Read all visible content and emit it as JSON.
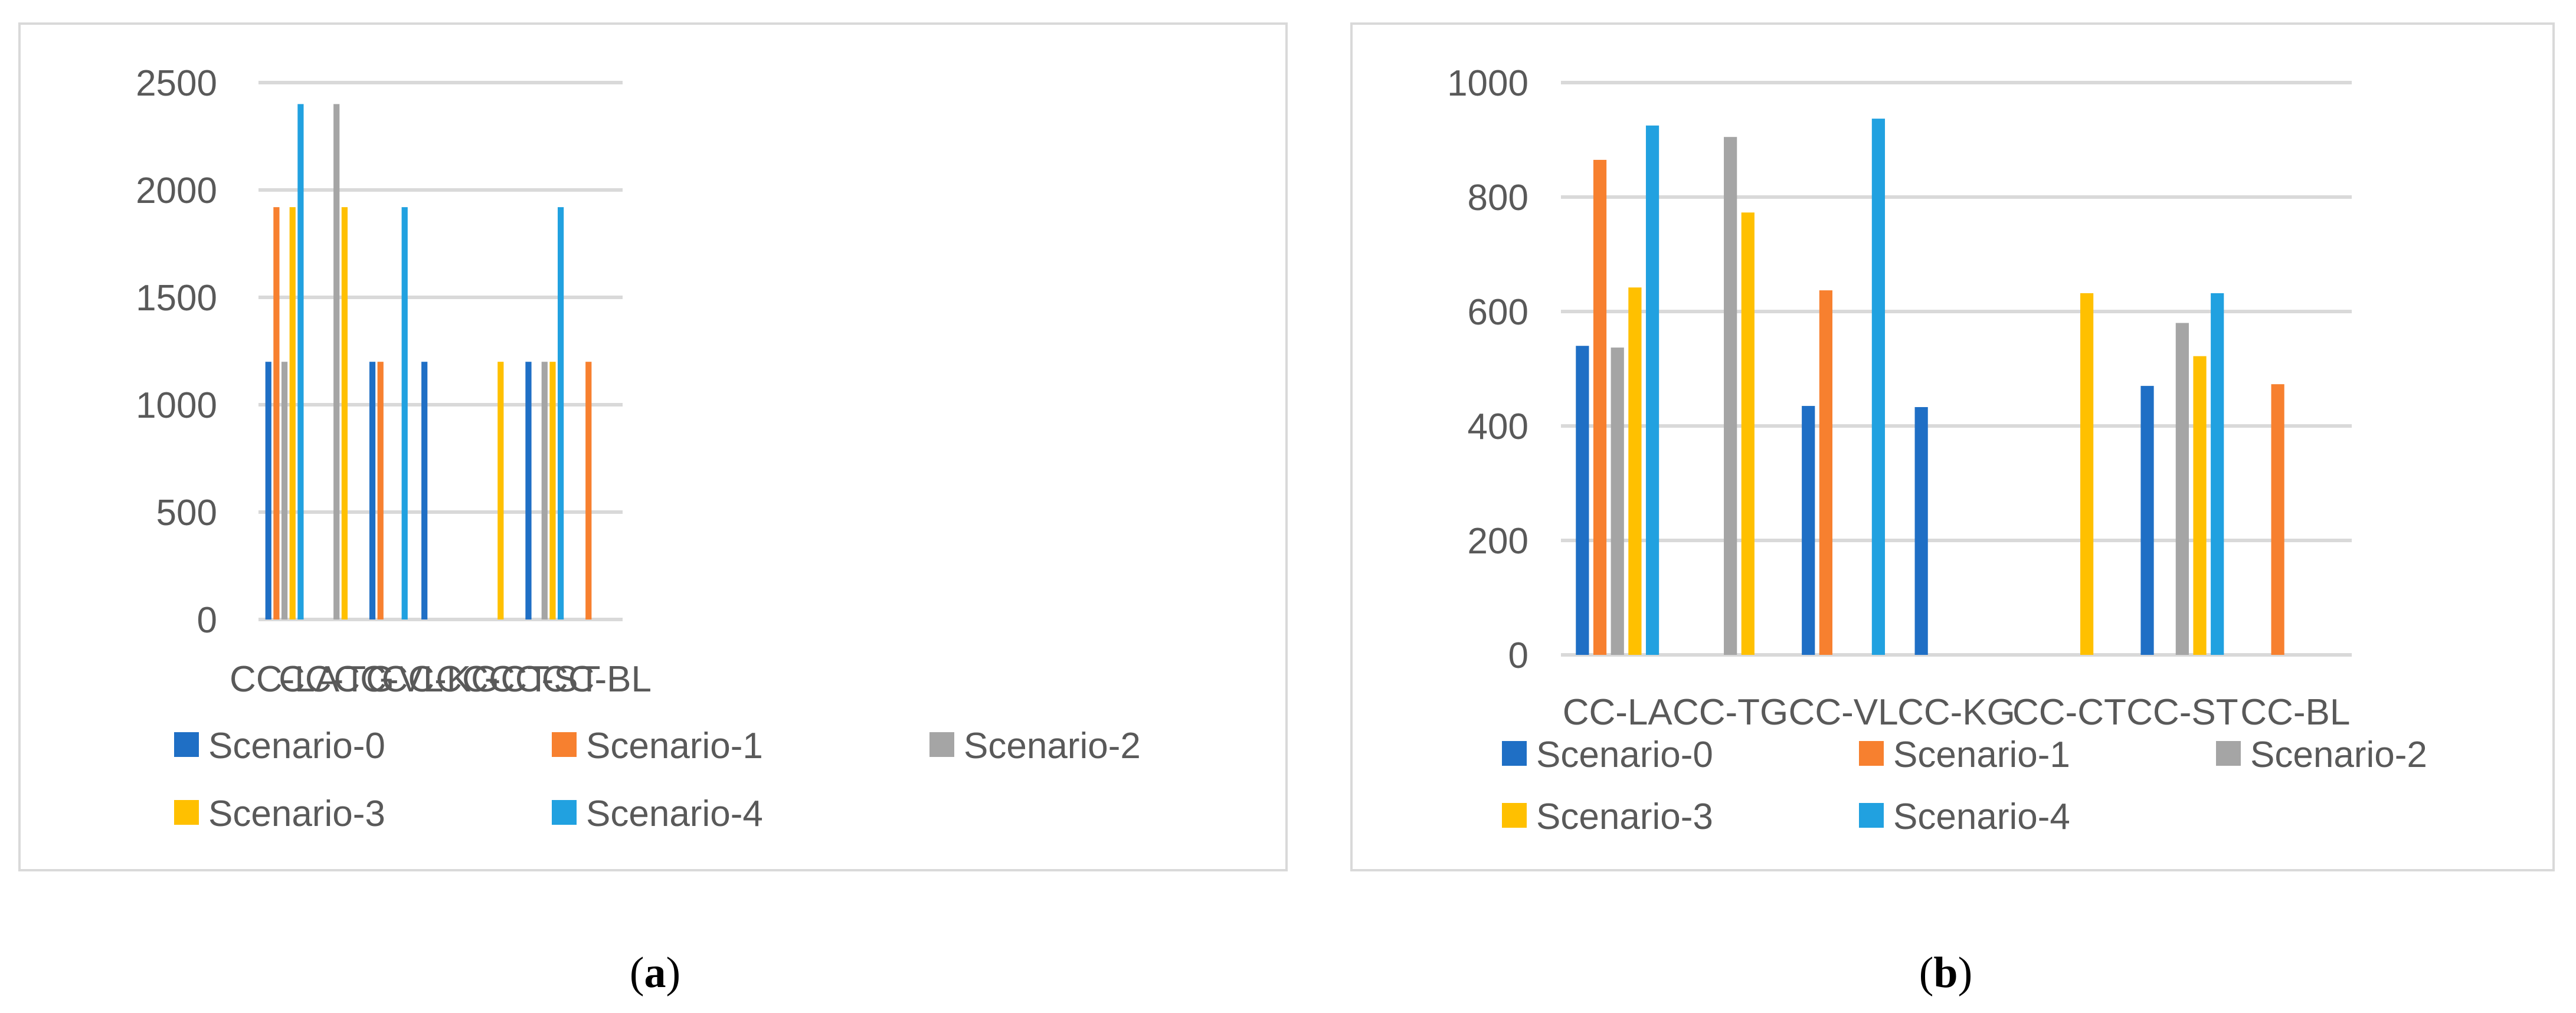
{
  "colors": {
    "Scenario-0": "#1f6fc5",
    "Scenario-1": "#f7802f",
    "Scenario-2": "#a5a5a5",
    "Scenario-3": "#ffc000",
    "Scenario-4": "#21a1e0",
    "grid": "#d9d9d9",
    "text": "#595959"
  },
  "captions": [
    {
      "open": "(",
      "letter": "a",
      "close": ")"
    },
    {
      "open": "(",
      "letter": "b",
      "close": ")"
    }
  ],
  "chart_data": [
    {
      "type": "bar",
      "title": "",
      "xlabel": "",
      "ylabel": "",
      "categories": [
        "CC-LA",
        "CC-TG",
        "CC-VL",
        "CC-KG",
        "CC-CT",
        "CC-ST",
        "CC-BL"
      ],
      "ylim": [
        0,
        2500
      ],
      "yticks": [
        0,
        500,
        1000,
        1500,
        2000,
        2500
      ],
      "grid": true,
      "legend_position": "bottom",
      "series": [
        {
          "name": "Scenario-0",
          "values": [
            1200,
            0,
            1200,
            1200,
            0,
            1200,
            0
          ]
        },
        {
          "name": "Scenario-1",
          "values": [
            1920,
            0,
            1200,
            0,
            0,
            0,
            1200
          ]
        },
        {
          "name": "Scenario-2",
          "values": [
            1200,
            2400,
            0,
            0,
            0,
            1200,
            0
          ]
        },
        {
          "name": "Scenario-3",
          "values": [
            1920,
            1920,
            0,
            0,
            1200,
            1200,
            0
          ]
        },
        {
          "name": "Scenario-4",
          "values": [
            2400,
            0,
            1920,
            0,
            0,
            1920,
            0
          ]
        }
      ]
    },
    {
      "type": "bar",
      "title": "",
      "xlabel": "",
      "ylabel": "",
      "categories": [
        "CC-LA",
        "CC-TG",
        "CC-VL",
        "CC-KG",
        "CC-CT",
        "CC-ST",
        "CC-BL"
      ],
      "ylim": [
        0,
        1000
      ],
      "yticks": [
        0,
        200,
        400,
        600,
        800,
        1000
      ],
      "grid": true,
      "legend_position": "bottom",
      "series": [
        {
          "name": "Scenario-0",
          "values": [
            540,
            0,
            435,
            433,
            0,
            470,
            0
          ]
        },
        {
          "name": "Scenario-1",
          "values": [
            865,
            0,
            637,
            0,
            0,
            0,
            473
          ]
        },
        {
          "name": "Scenario-2",
          "values": [
            537,
            905,
            0,
            0,
            0,
            580,
            0
          ]
        },
        {
          "name": "Scenario-3",
          "values": [
            642,
            773,
            0,
            0,
            632,
            522,
            0
          ]
        },
        {
          "name": "Scenario-4",
          "values": [
            925,
            0,
            937,
            0,
            0,
            632,
            0
          ]
        }
      ]
    }
  ]
}
